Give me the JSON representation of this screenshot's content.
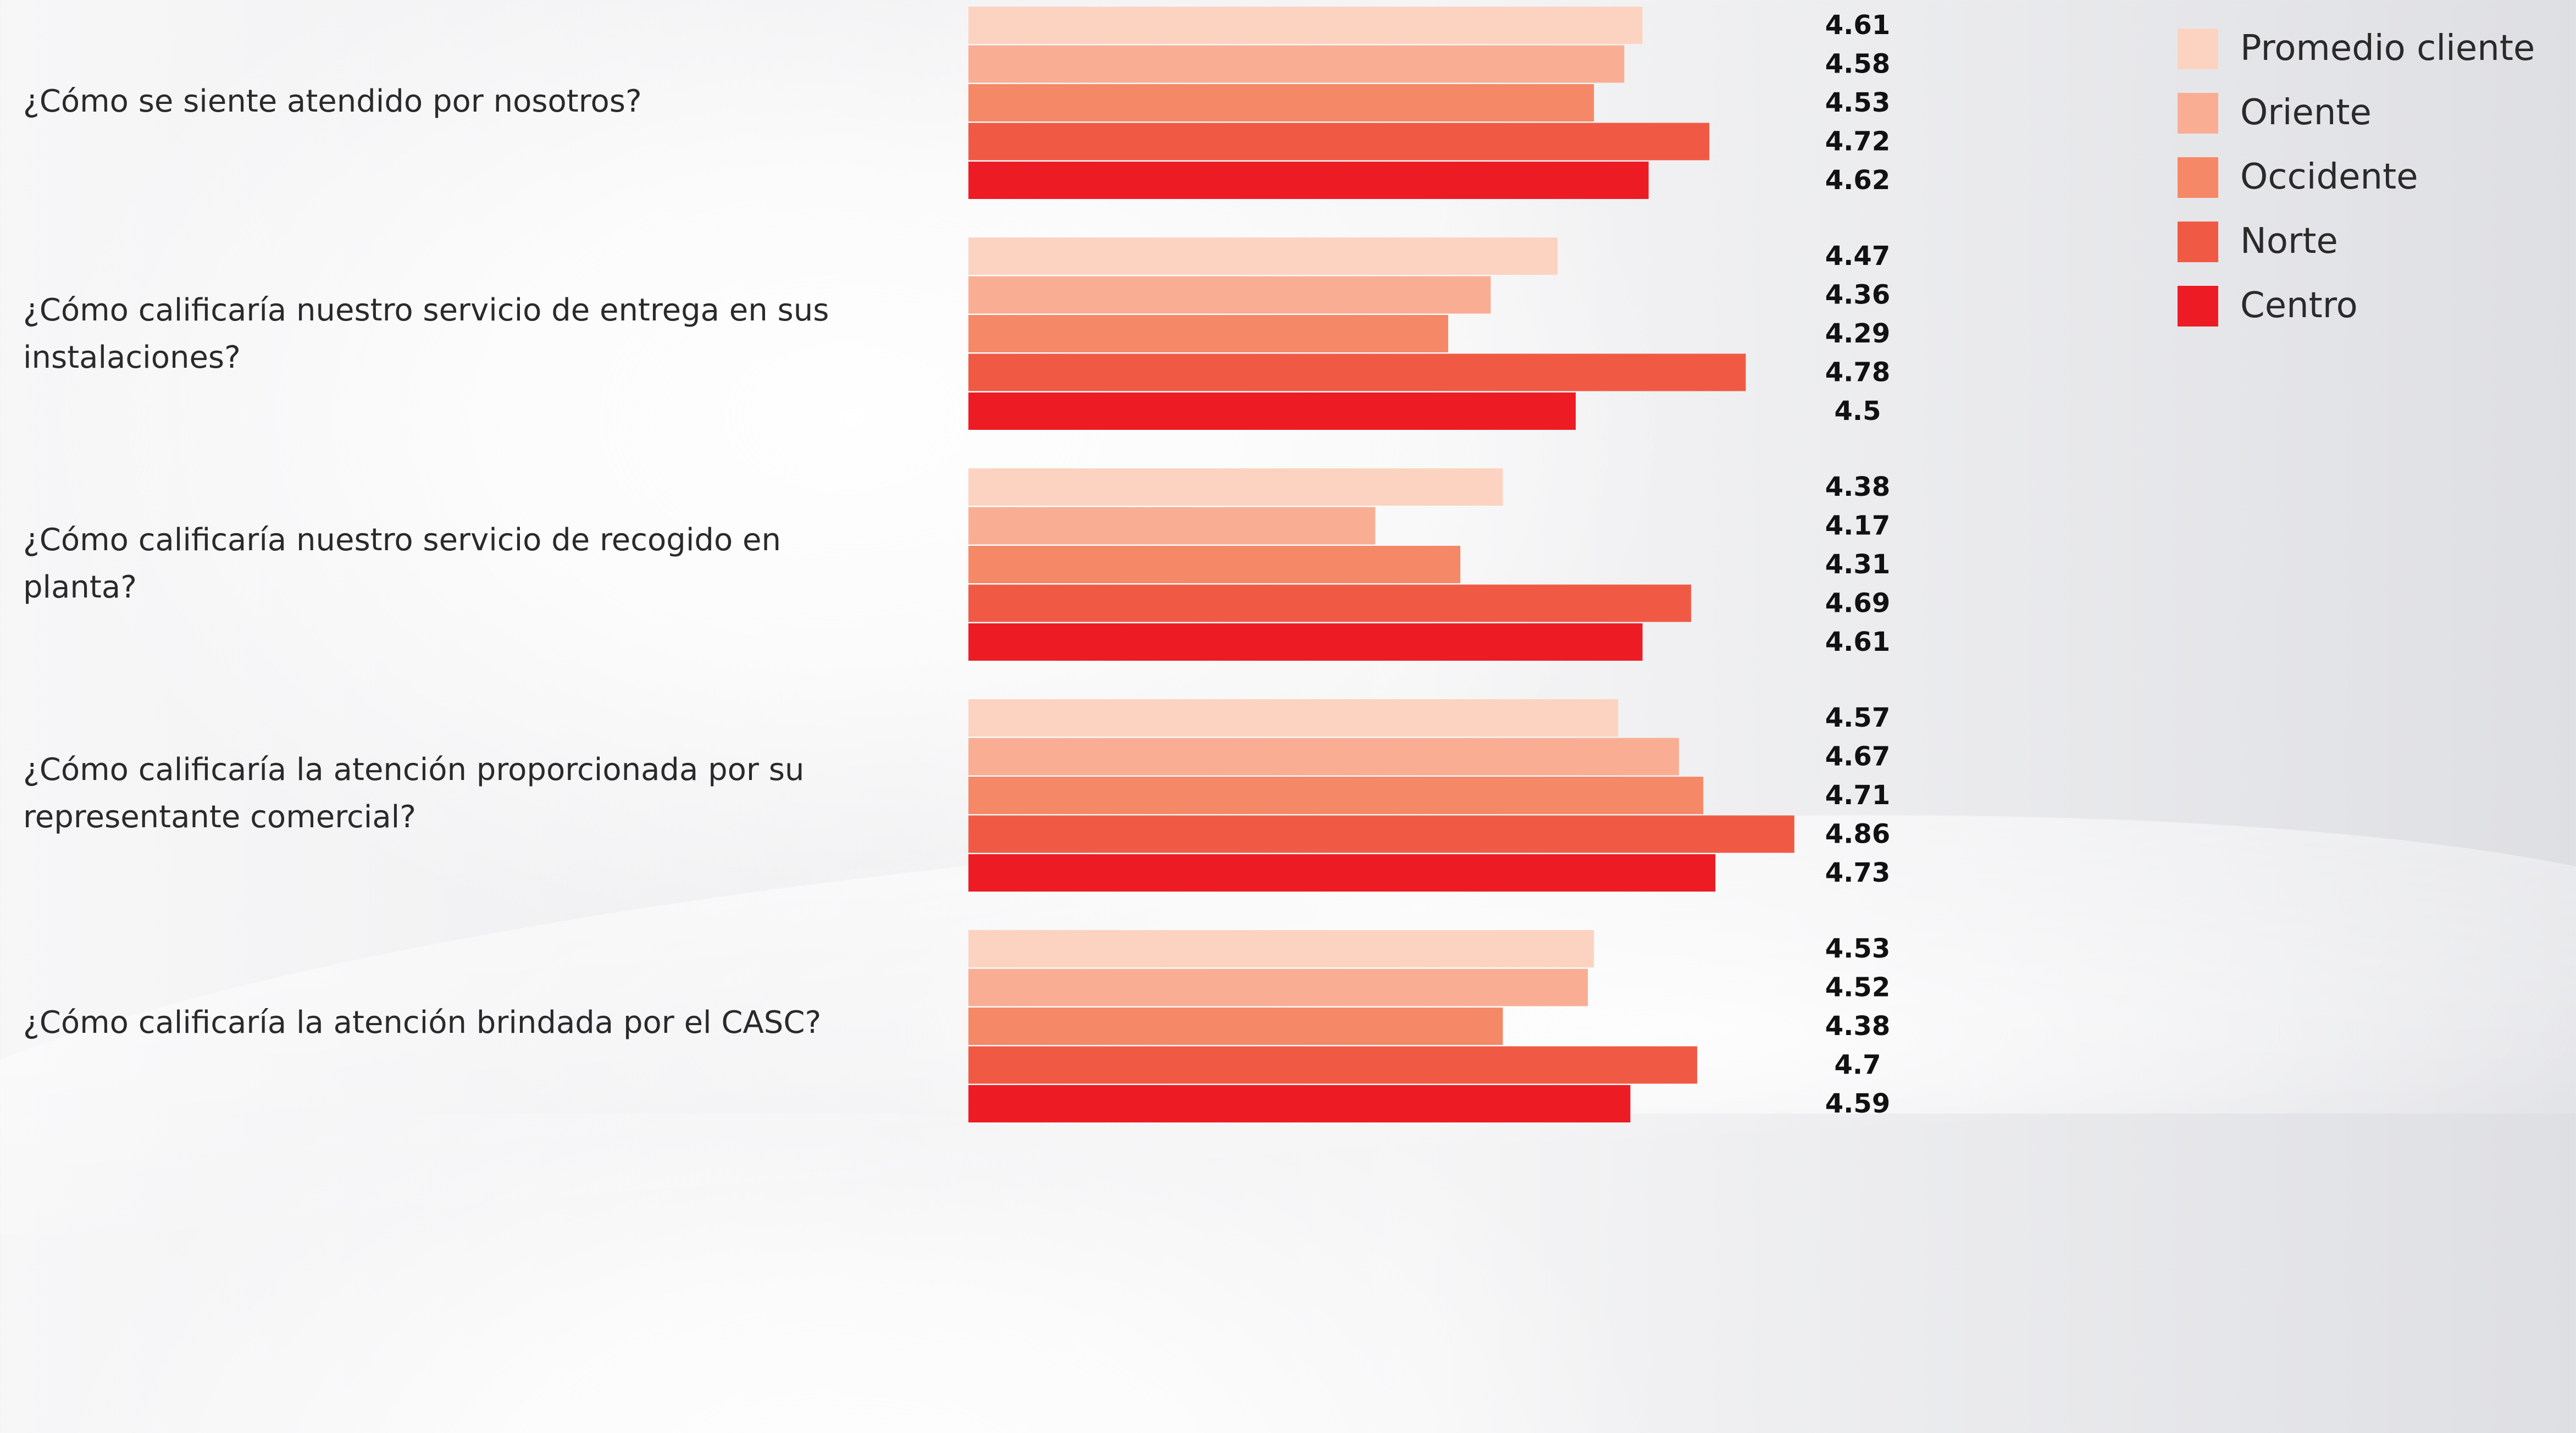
{
  "chart_data": {
    "type": "bar",
    "orientation": "horizontal",
    "title": "",
    "xlabel": "",
    "ylabel": "",
    "xlim": [
      3.5,
      4.9
    ],
    "grid": false,
    "legend_position": "top-right",
    "categories": [
      "¿Cómo se siente atendido por nosotros?",
      "¿Cómo calificaría nuestro servicio de entrega en sus instalaciones?",
      "¿Cómo calificaría nuestro servicio de recogido en planta?",
      "¿Cómo calificaría la atención proporcionada por su representante comercial?",
      "¿Cómo calificaría la atención brindada por el CASC?"
    ],
    "series": [
      {
        "name": "Promedio cliente",
        "color": "#FCD3C1",
        "values": [
          4.61,
          4.47,
          4.38,
          4.57,
          4.53
        ],
        "labels": [
          "4.61",
          "4.47",
          "4.38",
          "4.57",
          "4.53"
        ]
      },
      {
        "name": "Oriente",
        "color": "#F9AE94",
        "values": [
          4.58,
          4.36,
          4.17,
          4.67,
          4.52
        ],
        "labels": [
          "4.58",
          "4.36",
          "4.17",
          "4.67",
          "4.52"
        ]
      },
      {
        "name": "Occidente",
        "color": "#F58867",
        "values": [
          4.53,
          4.29,
          4.31,
          4.71,
          4.38
        ],
        "labels": [
          "4.53",
          "4.29",
          "4.31",
          "4.71",
          "4.38"
        ]
      },
      {
        "name": "Norte",
        "color": "#F05A45",
        "values": [
          4.72,
          4.78,
          4.69,
          4.86,
          4.7
        ],
        "labels": [
          "4.72",
          "4.78",
          "4.69",
          "4.86",
          "4.7"
        ]
      },
      {
        "name": "Centro",
        "color": "#ED1C24",
        "values": [
          4.62,
          4.5,
          4.61,
          4.73,
          4.59
        ],
        "labels": [
          "4.62",
          "4.5",
          "4.61",
          "4.73",
          "4.59"
        ]
      }
    ]
  }
}
